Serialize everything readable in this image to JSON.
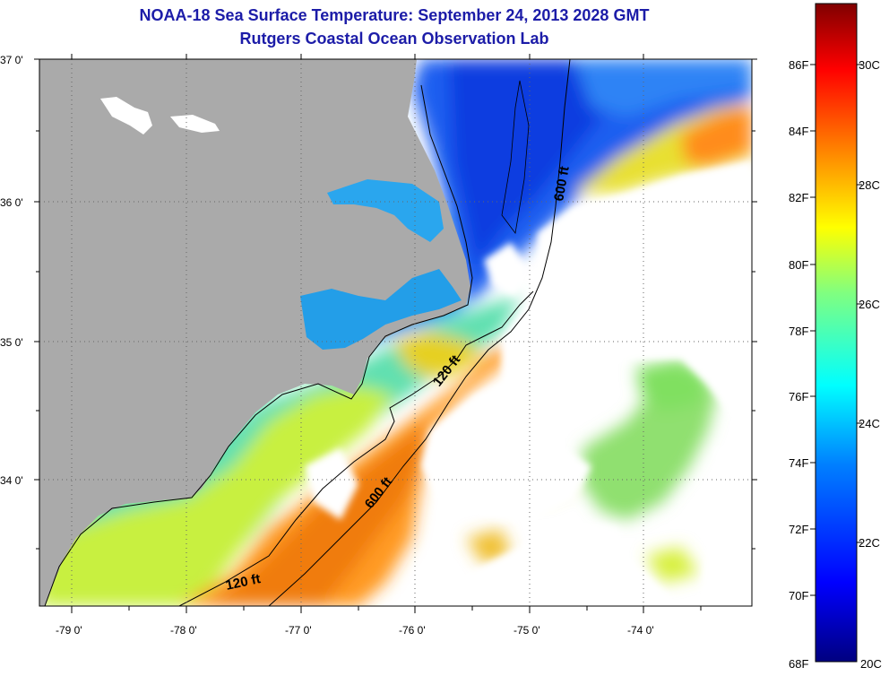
{
  "header": {
    "title": "NOAA-18 Sea Surface Temperature:  September 24, 2013 2028 GMT",
    "subtitle": "Rutgers Coastal Ocean Observation Lab"
  },
  "map": {
    "lat_labels": [
      "37 0'",
      "36 0'",
      "35 0'",
      "34 0'"
    ],
    "lon_labels": [
      "-79 0'",
      "-78 0'",
      "-77 0'",
      "-76 0'",
      "-75 0'",
      "-74 0'"
    ],
    "contour_labels": [
      "600 ft",
      "120 ft",
      "600 ft",
      "120 ft"
    ],
    "land_color": "#aaaaaa"
  },
  "colorbar": {
    "f_labels": [
      "86F",
      "84F",
      "82F",
      "80F",
      "78F",
      "76F",
      "74F",
      "72F",
      "70F",
      "68F"
    ],
    "c_labels": [
      "30C",
      "28C",
      "26C",
      "24C",
      "22C",
      "20C"
    ],
    "range_c": [
      20,
      31.1
    ],
    "colors": [
      "#000080",
      "#0000ff",
      "#0080ff",
      "#00ffff",
      "#80ff80",
      "#ffff00",
      "#ff8000",
      "#ff0000",
      "#800000"
    ]
  }
}
